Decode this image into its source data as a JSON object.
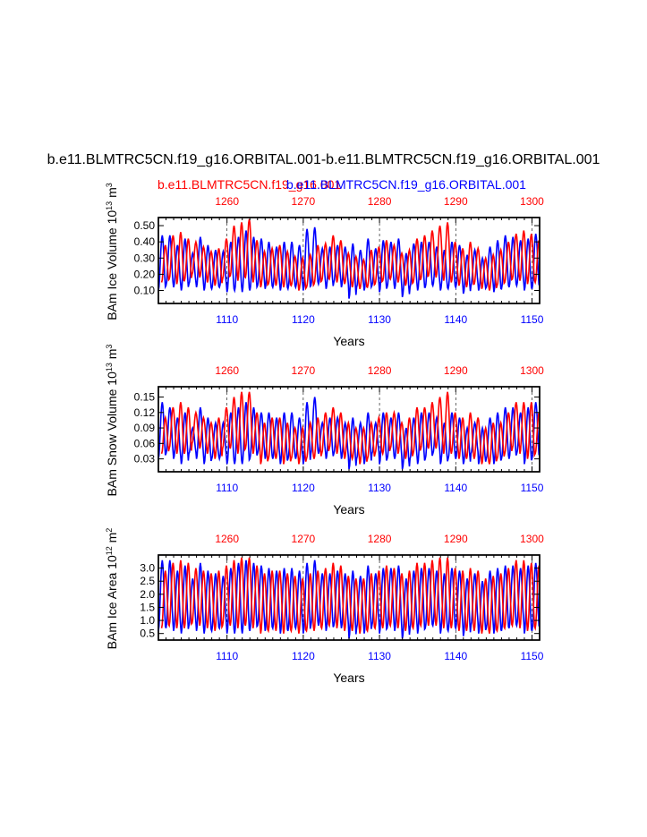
{
  "figure": {
    "title": "b.e11.BLMTRC5CN.f19_g16.ORBITAL.001-b.e11.BLMTRC5CN.f19_g16.ORBITAL.001",
    "legend": [
      {
        "label": "b.e11.BLMTRC5CN.f19_g16.001",
        "color": "#ff0000"
      },
      {
        "label": "b.e11.BLMTRC5CN.f19_g16.ORBITAL.001",
        "color": "#0000ff"
      }
    ]
  },
  "chart_data": [
    {
      "type": "line",
      "title": "",
      "xlabel": "Years",
      "ylabel_main": "BAm Ice Volume 10",
      "ylabel_exp": "13",
      "ylabel_unit": "m",
      "ylabel_unit_exp": "3",
      "xlim": [
        1101,
        1151
      ],
      "ylim": [
        0.02,
        0.55
      ],
      "top_xlim": [
        1251,
        1301
      ],
      "x_ticks": [
        "1110",
        "1120",
        "1130",
        "1140",
        "1150"
      ],
      "top_ticks": [
        "1260",
        "1270",
        "1280",
        "1290",
        "1300"
      ],
      "y_ticks": [
        "0.10",
        "0.20",
        "0.30",
        "0.40",
        "0.50"
      ],
      "series": [
        {
          "name": "b.e11.BLMTRC5CN.f19_g16.ORBITAL.001",
          "color": "#0000ff",
          "peaks": [
            0.44,
            0.44,
            0.38,
            0.42,
            0.33,
            0.43,
            0.38,
            0.35,
            0.34,
            0.4,
            0.43,
            0.47,
            0.43,
            0.42,
            0.4,
            0.37,
            0.4,
            0.4,
            0.38,
            0.48,
            0.49,
            0.36,
            0.37,
            0.38,
            0.37,
            0.39,
            0.35,
            0.42,
            0.36,
            0.41,
            0.4,
            0.42,
            0.33,
            0.39,
            0.4,
            0.4,
            0.37,
            0.35,
            0.4,
            0.38,
            0.32,
            0.35,
            0.3,
            0.37,
            0.41,
            0.44,
            0.43,
            0.41,
            0.42,
            0.45
          ],
          "troughs": [
            0.1,
            0.13,
            0.12,
            0.1,
            0.14,
            0.12,
            0.1,
            0.11,
            0.12,
            0.09,
            0.1,
            0.09,
            0.1,
            0.13,
            0.11,
            0.12,
            0.1,
            0.11,
            0.12,
            0.1,
            0.13,
            0.14,
            0.11,
            0.15,
            0.12,
            0.05,
            0.12,
            0.1,
            0.13,
            0.09,
            0.12,
            0.11,
            0.06,
            0.12,
            0.1,
            0.12,
            0.13,
            0.1,
            0.11,
            0.12,
            0.08,
            0.13,
            0.1,
            0.12,
            0.09,
            0.11,
            0.12,
            0.13,
            0.1,
            0.11
          ]
        },
        {
          "name": "b.e11.BLMTRC5CN.f19_g16.001",
          "color": "#ff0000",
          "peaks": [
            0.38,
            0.44,
            0.46,
            0.42,
            0.4,
            0.37,
            0.34,
            0.36,
            0.42,
            0.5,
            0.52,
            0.54,
            0.41,
            0.34,
            0.36,
            0.38,
            0.34,
            0.31,
            0.3,
            0.32,
            0.38,
            0.39,
            0.44,
            0.41,
            0.33,
            0.31,
            0.29,
            0.35,
            0.37,
            0.41,
            0.38,
            0.33,
            0.35,
            0.42,
            0.44,
            0.47,
            0.5,
            0.52,
            0.4,
            0.36,
            0.4,
            0.36,
            0.3,
            0.32,
            0.35,
            0.4,
            0.45,
            0.47,
            0.45,
            0.41
          ],
          "troughs": [
            0.15,
            0.17,
            0.14,
            0.16,
            0.2,
            0.18,
            0.15,
            0.13,
            0.17,
            0.19,
            0.16,
            0.18,
            0.15,
            0.12,
            0.14,
            0.13,
            0.12,
            0.13,
            0.1,
            0.12,
            0.14,
            0.16,
            0.17,
            0.15,
            0.14,
            0.12,
            0.11,
            0.12,
            0.14,
            0.16,
            0.17,
            0.15,
            0.13,
            0.15,
            0.17,
            0.19,
            0.18,
            0.16,
            0.15,
            0.13,
            0.12,
            0.14,
            0.11,
            0.1,
            0.13,
            0.15,
            0.17,
            0.16,
            0.14,
            0.15
          ]
        }
      ]
    },
    {
      "type": "line",
      "title": "",
      "xlabel": "Years",
      "ylabel_main": "BAm Snow Volume 10",
      "ylabel_exp": "13",
      "ylabel_unit": "m",
      "ylabel_unit_exp": "3",
      "xlim": [
        1101,
        1151
      ],
      "ylim": [
        0.005,
        0.17
      ],
      "top_xlim": [
        1251,
        1301
      ],
      "x_ticks": [
        "1110",
        "1120",
        "1130",
        "1140",
        "1150"
      ],
      "top_ticks": [
        "1260",
        "1270",
        "1280",
        "1290",
        "1300"
      ],
      "y_ticks": [
        "0.03",
        "0.06",
        "0.09",
        "0.12",
        "0.15"
      ],
      "series": [
        {
          "name": "b.e11.BLMTRC5CN.f19_g16.ORBITAL.001",
          "color": "#0000ff",
          "peaks": [
            0.14,
            0.13,
            0.11,
            0.12,
            0.09,
            0.13,
            0.11,
            0.1,
            0.1,
            0.12,
            0.13,
            0.14,
            0.13,
            0.12,
            0.12,
            0.11,
            0.12,
            0.12,
            0.11,
            0.14,
            0.15,
            0.1,
            0.11,
            0.11,
            0.1,
            0.11,
            0.1,
            0.12,
            0.1,
            0.12,
            0.11,
            0.12,
            0.09,
            0.11,
            0.12,
            0.12,
            0.11,
            0.1,
            0.12,
            0.11,
            0.09,
            0.1,
            0.09,
            0.11,
            0.12,
            0.13,
            0.13,
            0.12,
            0.13,
            0.14
          ],
          "troughs": [
            0.03,
            0.04,
            0.03,
            0.02,
            0.04,
            0.03,
            0.02,
            0.03,
            0.03,
            0.02,
            0.02,
            0.02,
            0.03,
            0.04,
            0.03,
            0.03,
            0.02,
            0.03,
            0.03,
            0.02,
            0.04,
            0.04,
            0.03,
            0.04,
            0.03,
            0.01,
            0.03,
            0.02,
            0.04,
            0.02,
            0.03,
            0.03,
            0.01,
            0.03,
            0.02,
            0.03,
            0.04,
            0.02,
            0.03,
            0.03,
            0.02,
            0.04,
            0.02,
            0.03,
            0.02,
            0.03,
            0.03,
            0.04,
            0.02,
            0.03
          ]
        },
        {
          "name": "b.e11.BLMTRC5CN.f19_g16.001",
          "color": "#ff0000",
          "peaks": [
            0.11,
            0.13,
            0.14,
            0.13,
            0.12,
            0.11,
            0.1,
            0.11,
            0.13,
            0.15,
            0.16,
            0.16,
            0.12,
            0.1,
            0.11,
            0.11,
            0.1,
            0.09,
            0.09,
            0.1,
            0.11,
            0.12,
            0.13,
            0.12,
            0.1,
            0.09,
            0.09,
            0.1,
            0.11,
            0.12,
            0.12,
            0.1,
            0.11,
            0.13,
            0.13,
            0.14,
            0.15,
            0.16,
            0.12,
            0.11,
            0.12,
            0.11,
            0.09,
            0.1,
            0.1,
            0.12,
            0.14,
            0.14,
            0.14,
            0.12
          ],
          "troughs": [
            0.04,
            0.05,
            0.04,
            0.04,
            0.06,
            0.05,
            0.04,
            0.03,
            0.05,
            0.05,
            0.04,
            0.05,
            0.04,
            0.02,
            0.03,
            0.03,
            0.02,
            0.03,
            0.02,
            0.03,
            0.03,
            0.04,
            0.05,
            0.04,
            0.03,
            0.03,
            0.02,
            0.03,
            0.04,
            0.04,
            0.05,
            0.04,
            0.03,
            0.04,
            0.05,
            0.05,
            0.05,
            0.04,
            0.04,
            0.03,
            0.03,
            0.03,
            0.02,
            0.02,
            0.03,
            0.04,
            0.05,
            0.04,
            0.03,
            0.04
          ]
        }
      ]
    },
    {
      "type": "line",
      "title": "",
      "xlabel": "Years",
      "ylabel_main": "BAm Ice Area 10",
      "ylabel_exp": "12",
      "ylabel_unit": "m",
      "ylabel_unit_exp": "2",
      "xlim": [
        1101,
        1151
      ],
      "ylim": [
        0.25,
        3.5
      ],
      "top_xlim": [
        1251,
        1301
      ],
      "x_ticks": [
        "1110",
        "1120",
        "1130",
        "1140",
        "1150"
      ],
      "top_ticks": [
        "1260",
        "1270",
        "1280",
        "1290",
        "1300"
      ],
      "y_ticks": [
        "0.5",
        "1.0",
        "1.5",
        "2.0",
        "2.5",
        "3.0"
      ],
      "series": [
        {
          "name": "b.e11.BLMTRC5CN.f19_g16.ORBITAL.001",
          "color": "#0000ff",
          "peaks": [
            3.3,
            3.3,
            2.9,
            3.1,
            2.6,
            3.2,
            2.9,
            2.8,
            2.7,
            3.0,
            3.2,
            3.3,
            3.2,
            3.1,
            3.0,
            2.9,
            3.0,
            3.0,
            2.9,
            3.2,
            3.3,
            2.8,
            2.8,
            2.9,
            2.8,
            2.9,
            2.7,
            3.1,
            2.8,
            3.0,
            3.0,
            3.1,
            2.6,
            2.9,
            3.0,
            3.0,
            2.9,
            2.8,
            3.0,
            2.9,
            2.6,
            2.8,
            2.5,
            2.9,
            3.0,
            3.1,
            3.1,
            3.0,
            3.1,
            3.2
          ],
          "troughs": [
            0.6,
            0.7,
            0.6,
            0.5,
            0.8,
            0.6,
            0.5,
            0.6,
            0.7,
            0.5,
            0.5,
            0.5,
            0.6,
            0.8,
            0.6,
            0.7,
            0.5,
            0.6,
            0.7,
            0.5,
            0.8,
            0.8,
            0.6,
            0.8,
            0.7,
            0.3,
            0.7,
            0.5,
            0.8,
            0.5,
            0.7,
            0.6,
            0.3,
            0.7,
            0.5,
            0.7,
            0.8,
            0.5,
            0.6,
            0.7,
            0.4,
            0.8,
            0.5,
            0.7,
            0.5,
            0.6,
            0.7,
            0.8,
            0.5,
            0.6
          ]
        },
        {
          "name": "b.e11.BLMTRC5CN.f19_g16.001",
          "color": "#ff0000",
          "peaks": [
            2.9,
            3.2,
            3.3,
            3.2,
            3.0,
            2.9,
            2.8,
            2.9,
            3.1,
            3.3,
            3.4,
            3.4,
            3.1,
            2.8,
            2.9,
            2.9,
            2.8,
            2.7,
            2.6,
            2.8,
            2.9,
            3.0,
            3.2,
            3.1,
            2.7,
            2.6,
            2.6,
            2.8,
            2.9,
            3.1,
            3.0,
            2.8,
            2.9,
            3.2,
            3.2,
            3.3,
            3.4,
            3.4,
            3.0,
            2.9,
            3.0,
            2.9,
            2.6,
            2.7,
            2.8,
            3.0,
            3.3,
            3.3,
            3.2,
            3.1
          ],
          "troughs": [
            0.7,
            0.8,
            0.7,
            0.7,
            0.9,
            0.8,
            0.7,
            0.6,
            0.8,
            0.8,
            0.7,
            0.8,
            0.7,
            0.5,
            0.6,
            0.6,
            0.5,
            0.6,
            0.5,
            0.6,
            0.6,
            0.7,
            0.8,
            0.7,
            0.6,
            0.6,
            0.5,
            0.6,
            0.7,
            0.7,
            0.8,
            0.7,
            0.6,
            0.7,
            0.8,
            0.8,
            0.8,
            0.7,
            0.7,
            0.6,
            0.6,
            0.6,
            0.5,
            0.5,
            0.6,
            0.7,
            0.8,
            0.7,
            0.6,
            0.7
          ]
        }
      ]
    }
  ]
}
